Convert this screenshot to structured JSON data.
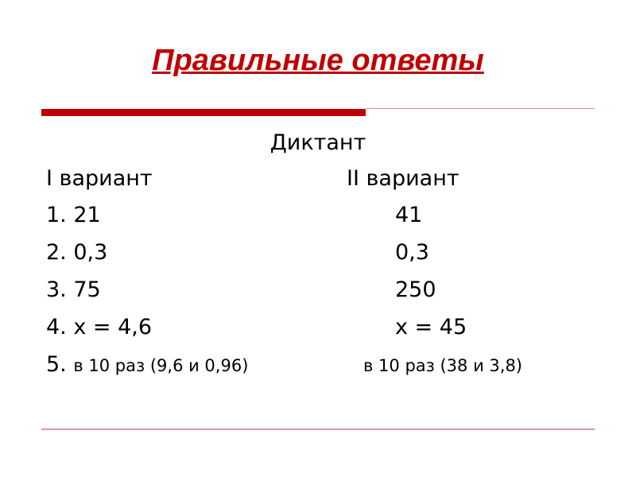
{
  "title": "Правильные ответы",
  "subtitle": "Диктант",
  "variants": {
    "left_header": "I вариант",
    "right_header": "II вариант"
  },
  "rows": [
    {
      "num": "1.",
      "left": "21",
      "right": "41"
    },
    {
      "num": "2.",
      "left": "0,3",
      "right": "0,3"
    },
    {
      "num": "3.",
      "left": "75",
      "right": "250"
    },
    {
      "num": "4.",
      "left": "x = 4,6",
      "right": "x = 45"
    },
    {
      "num": "5.",
      "left": "в 10 раз (9,6 и 0,96)",
      "right": "в 10 раз (38 и 3,8)"
    }
  ],
  "colors": {
    "accent": "#c00000"
  }
}
